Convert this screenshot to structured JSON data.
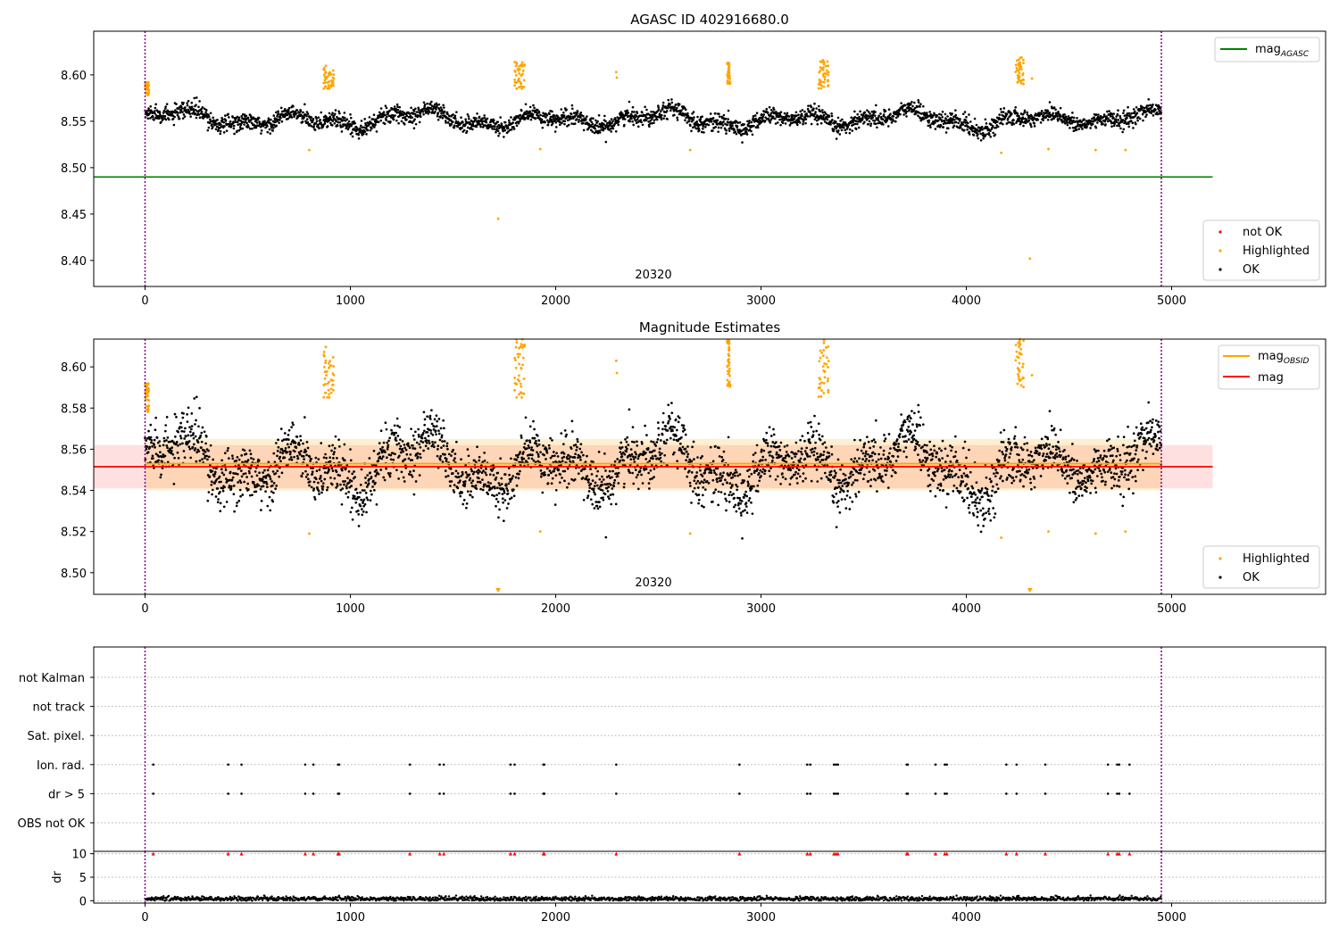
{
  "chart_data": [
    {
      "type": "scatter",
      "title": "AGASC ID 402916680.0",
      "xlim": [
        -250,
        5750
      ],
      "ylim": [
        8.372,
        8.647
      ],
      "xticks": [
        0,
        1000,
        2000,
        3000,
        4000,
        5000
      ],
      "yticks": [
        8.4,
        8.45,
        8.5,
        8.55,
        8.6
      ],
      "ytick_labels": [
        "8.40",
        "8.45",
        "8.50",
        "8.55",
        "8.60"
      ],
      "xtick_labels": [
        "0",
        "1000",
        "2000",
        "3000",
        "4000",
        "5000"
      ],
      "obsid_boundaries": [
        0,
        4950
      ],
      "obsid_label": "20320",
      "reference_line": {
        "name": "mag_AGASC",
        "y": 8.49,
        "x": [
          -250,
          5200
        ],
        "color": "#008000"
      },
      "ok_series": {
        "name": "OK",
        "color": "#000000",
        "baseline": 8.552,
        "noise": 0.009
      },
      "highlighted_clusters": [
        {
          "x": [
            0,
            20
          ],
          "y": [
            8.578,
            8.592
          ]
        },
        {
          "x": [
            870,
            920
          ],
          "y": [
            8.585,
            8.61
          ]
        },
        {
          "x": [
            1800,
            1850
          ],
          "y": [
            8.585,
            8.614
          ]
        },
        {
          "x": [
            2835,
            2850
          ],
          "y": [
            8.59,
            8.613
          ]
        },
        {
          "x": [
            3280,
            3330
          ],
          "y": [
            8.585,
            8.616
          ]
        },
        {
          "x": [
            4240,
            4280
          ],
          "y": [
            8.59,
            8.62
          ]
        }
      ],
      "highlighted_points": [
        {
          "x": 800,
          "y": 8.519
        },
        {
          "x": 1720,
          "y": 8.445
        },
        {
          "x": 1925,
          "y": 8.52
        },
        {
          "x": 2295,
          "y": 8.603
        },
        {
          "x": 2298,
          "y": 8.597
        },
        {
          "x": 2655,
          "y": 8.519
        },
        {
          "x": 4170,
          "y": 8.516
        },
        {
          "x": 4310,
          "y": 8.402
        },
        {
          "x": 4320,
          "y": 8.596
        },
        {
          "x": 4400,
          "y": 8.52
        },
        {
          "x": 4630,
          "y": 8.519
        },
        {
          "x": 4775,
          "y": 8.519
        }
      ],
      "legend_top": [
        "mag_AGASC"
      ],
      "legend_bottom": [
        "not OK",
        "Highlighted",
        "OK"
      ],
      "colors": {
        "ok": "#000000",
        "highlighted": "#ffa500",
        "not_ok": "#ff0000",
        "agasc": "#008000",
        "obsid": "#800080"
      }
    },
    {
      "type": "scatter",
      "title": "Magnitude Estimates",
      "xlim": [
        -250,
        5750
      ],
      "ylim": [
        8.4895,
        8.6135
      ],
      "xticks": [
        0,
        1000,
        2000,
        3000,
        4000,
        5000
      ],
      "xtick_labels": [
        "0",
        "1000",
        "2000",
        "3000",
        "4000",
        "5000"
      ],
      "yticks": [
        8.5,
        8.52,
        8.54,
        8.56,
        8.58,
        8.6
      ],
      "ytick_labels": [
        "8.50",
        "8.52",
        "8.54",
        "8.56",
        "8.58",
        "8.60"
      ],
      "obsid_boundaries": [
        0,
        4950
      ],
      "obsid_label": "20320",
      "mag_obsid": {
        "name": "mag_OBSID",
        "y": 8.553,
        "x": [
          0,
          4950
        ],
        "band": [
          8.54,
          8.565
        ],
        "color": "#ffa500"
      },
      "mag": {
        "name": "mag",
        "y": 8.5515,
        "x": [
          -250,
          5200
        ],
        "band": [
          8.541,
          8.562
        ],
        "color": "#ff0000"
      },
      "ok_series": {
        "name": "OK",
        "color": "#000000",
        "baseline": 8.552,
        "noise": 0.009
      },
      "clipped_markers_x": [
        1720,
        4310
      ],
      "highlighted_points": [
        {
          "x": 800,
          "y": 8.519
        },
        {
          "x": 1925,
          "y": 8.52
        },
        {
          "x": 2295,
          "y": 8.603
        },
        {
          "x": 2298,
          "y": 8.597
        },
        {
          "x": 2655,
          "y": 8.519
        },
        {
          "x": 4170,
          "y": 8.517
        },
        {
          "x": 4320,
          "y": 8.596
        },
        {
          "x": 4400,
          "y": 8.52
        },
        {
          "x": 4630,
          "y": 8.519
        },
        {
          "x": 4775,
          "y": 8.52
        }
      ],
      "legend_top": [
        "mag_OBSID",
        "mag"
      ],
      "legend_bottom": [
        "Highlighted",
        "OK"
      ]
    },
    {
      "type": "scatter",
      "title": "",
      "xlim": [
        -250,
        5750
      ],
      "xticks": [
        0,
        1000,
        2000,
        3000,
        4000,
        5000
      ],
      "xtick_labels": [
        "0",
        "1000",
        "2000",
        "3000",
        "4000",
        "5000"
      ],
      "obsid_boundaries": [
        0,
        4950
      ],
      "flag_rows": [
        "not Kalman",
        "not track",
        "Sat. pixel.",
        "Ion. rad.",
        "dr > 5",
        "OBS not OK"
      ],
      "flagged_x": [
        40,
        405,
        470,
        780,
        820,
        940,
        945,
        1290,
        1435,
        1455,
        1780,
        1800,
        1940,
        1945,
        2295,
        2895,
        3225,
        3240,
        3355,
        3365,
        3375,
        3710,
        3715,
        3850,
        3895,
        3905,
        4195,
        4245,
        4385,
        4690,
        4735,
        4745,
        4795
      ],
      "dr": {
        "ylabel": "dr",
        "ylim": [
          -0.5,
          10.5
        ],
        "yticks": [
          0,
          5,
          10
        ],
        "ytick_labels": [
          "0",
          "5",
          "10"
        ],
        "typical": 0.4,
        "clip_value": 10
      }
    }
  ]
}
